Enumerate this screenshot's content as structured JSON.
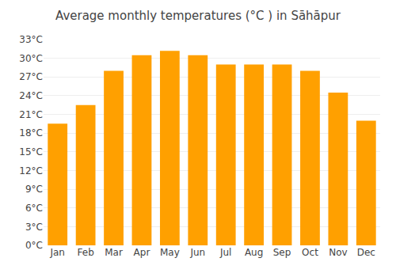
{
  "chart_data": {
    "type": "bar",
    "title": "Average monthly temperatures (°C ) in Sāhāpur",
    "categories": [
      "Jan",
      "Feb",
      "Mar",
      "Apr",
      "May",
      "Jun",
      "Jul",
      "Aug",
      "Sep",
      "Oct",
      "Nov",
      "Dec"
    ],
    "values": [
      19.5,
      22.5,
      28.0,
      30.5,
      31.2,
      30.5,
      29.0,
      29.0,
      29.0,
      28.0,
      24.5,
      20.0
    ],
    "color": "#FFA000",
    "ylim": [
      0,
      33
    ],
    "yticks": [
      {
        "value": 0,
        "label": "0°C"
      },
      {
        "value": 3,
        "label": "3°C"
      },
      {
        "value": 6,
        "label": "6°C"
      },
      {
        "value": 9,
        "label": "9°C"
      },
      {
        "value": 12,
        "label": "12°C"
      },
      {
        "value": 15,
        "label": "15°C"
      },
      {
        "value": 18,
        "label": "18°C"
      },
      {
        "value": 21,
        "label": "21°C"
      },
      {
        "value": 24,
        "label": "24°C"
      },
      {
        "value": 27,
        "label": "27°C"
      },
      {
        "value": 30,
        "label": "30°C"
      },
      {
        "value": 33,
        "label": "33°C"
      }
    ],
    "grid": true
  }
}
